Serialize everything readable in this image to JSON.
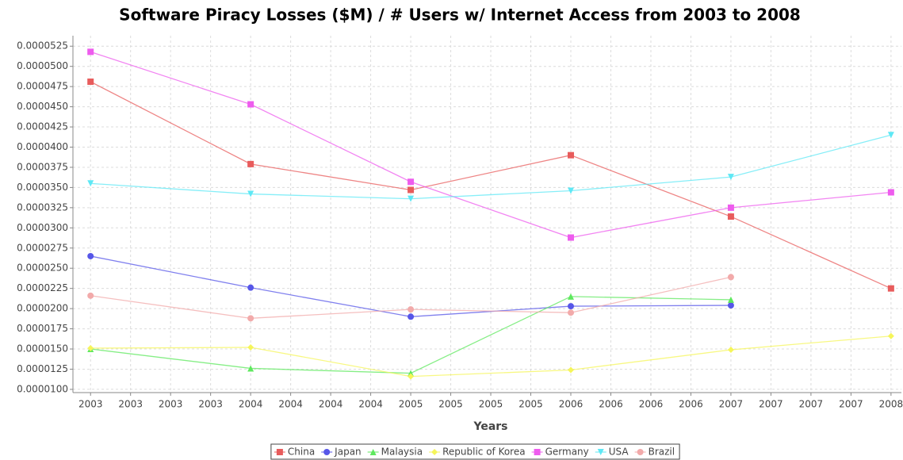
{
  "chart_data": {
    "type": "line",
    "title": "Software Piracy Losses ($M) / # Users w/ Internet Access from 2003 to 2008",
    "x_label": "Years",
    "x": [
      2003,
      2004,
      2005,
      2006,
      2007,
      2008
    ],
    "series": [
      {
        "name": "China",
        "color": "#e85c5c",
        "marker": "square",
        "values": [
          4.81e-05,
          3.79e-05,
          3.47e-05,
          3.9e-05,
          3.14e-05,
          2.25e-05
        ]
      },
      {
        "name": "Japan",
        "color": "#5656e8",
        "marker": "circle",
        "values": [
          2.65e-05,
          2.26e-05,
          1.9e-05,
          2.03e-05,
          2.04e-05,
          null
        ]
      },
      {
        "name": "Malaysia",
        "color": "#5ee85e",
        "marker": "triangle-up",
        "values": [
          1.5e-05,
          1.26e-05,
          1.2e-05,
          2.15e-05,
          2.11e-05,
          null
        ]
      },
      {
        "name": "Republic of Korea",
        "color": "#f5f55a",
        "marker": "diamond",
        "values": [
          1.51e-05,
          1.52e-05,
          1.16e-05,
          1.24e-05,
          1.49e-05,
          1.66e-05
        ]
      },
      {
        "name": "Germany",
        "color": "#ee5cee",
        "marker": "square",
        "values": [
          5.18e-05,
          4.53e-05,
          3.57e-05,
          2.88e-05,
          3.25e-05,
          3.44e-05
        ]
      },
      {
        "name": "USA",
        "color": "#5ee8f5",
        "marker": "triangle-down",
        "values": [
          3.55e-05,
          3.42e-05,
          3.36e-05,
          3.46e-05,
          3.63e-05,
          4.15e-05
        ]
      },
      {
        "name": "Brazil",
        "color": "#f2aaaa",
        "marker": "circle",
        "values": [
          2.16e-05,
          1.88e-05,
          1.99e-05,
          1.95e-05,
          2.39e-05,
          null
        ]
      }
    ],
    "xlim": [
      2002.89,
      2008.065
    ],
    "xticks": [
      2003,
      {
        "value": 2003.25,
        "label": "2003"
      },
      {
        "value": 2003.5,
        "label": "2003"
      },
      {
        "value": 2003.75,
        "label": "2003"
      },
      2004,
      {
        "value": 2004.25,
        "label": "2004"
      },
      {
        "value": 2004.5,
        "label": "2004"
      },
      {
        "value": 2004.75,
        "label": "2004"
      },
      2005,
      {
        "value": 2005.25,
        "label": "2005"
      },
      {
        "value": 2005.5,
        "label": "2005"
      },
      {
        "value": 2005.75,
        "label": "2005"
      },
      2006,
      {
        "value": 2006.25,
        "label": "2006"
      },
      {
        "value": 2006.5,
        "label": "2006"
      },
      {
        "value": 2006.75,
        "label": "2006"
      },
      2007,
      {
        "value": 2007.25,
        "label": "2007"
      },
      {
        "value": 2007.5,
        "label": "2007"
      },
      {
        "value": 2007.75,
        "label": "2007"
      },
      2008
    ],
    "ylim": [
      9.6e-06,
      5.38e-05
    ],
    "yticks": [
      {
        "value": 1e-05,
        "label": "0.0000100"
      },
      {
        "value": 1.25e-05,
        "label": "0.0000125"
      },
      {
        "value": 1.5e-05,
        "label": "0.0000150"
      },
      {
        "value": 1.75e-05,
        "label": "0.0000175"
      },
      {
        "value": 2e-05,
        "label": "0.0000200"
      },
      {
        "value": 2.25e-05,
        "label": "0.0000225"
      },
      {
        "value": 2.5e-05,
        "label": "0.0000250"
      },
      {
        "value": 2.75e-05,
        "label": "0.0000275"
      },
      {
        "value": 3e-05,
        "label": "0.0000300"
      },
      {
        "value": 3.25e-05,
        "label": "0.0000325"
      },
      {
        "value": 3.5e-05,
        "label": "0.0000350"
      },
      {
        "value": 3.75e-05,
        "label": "0.0000375"
      },
      {
        "value": 4e-05,
        "label": "0.0000400"
      },
      {
        "value": 4.25e-05,
        "label": "0.0000425"
      },
      {
        "value": 4.5e-05,
        "label": "0.0000450"
      },
      {
        "value": 4.75e-05,
        "label": "0.0000475"
      },
      {
        "value": 5e-05,
        "label": "0.0000500"
      },
      {
        "value": 5.25e-05,
        "label": "0.0000525"
      }
    ],
    "grid": true,
    "legend": "bottom"
  }
}
